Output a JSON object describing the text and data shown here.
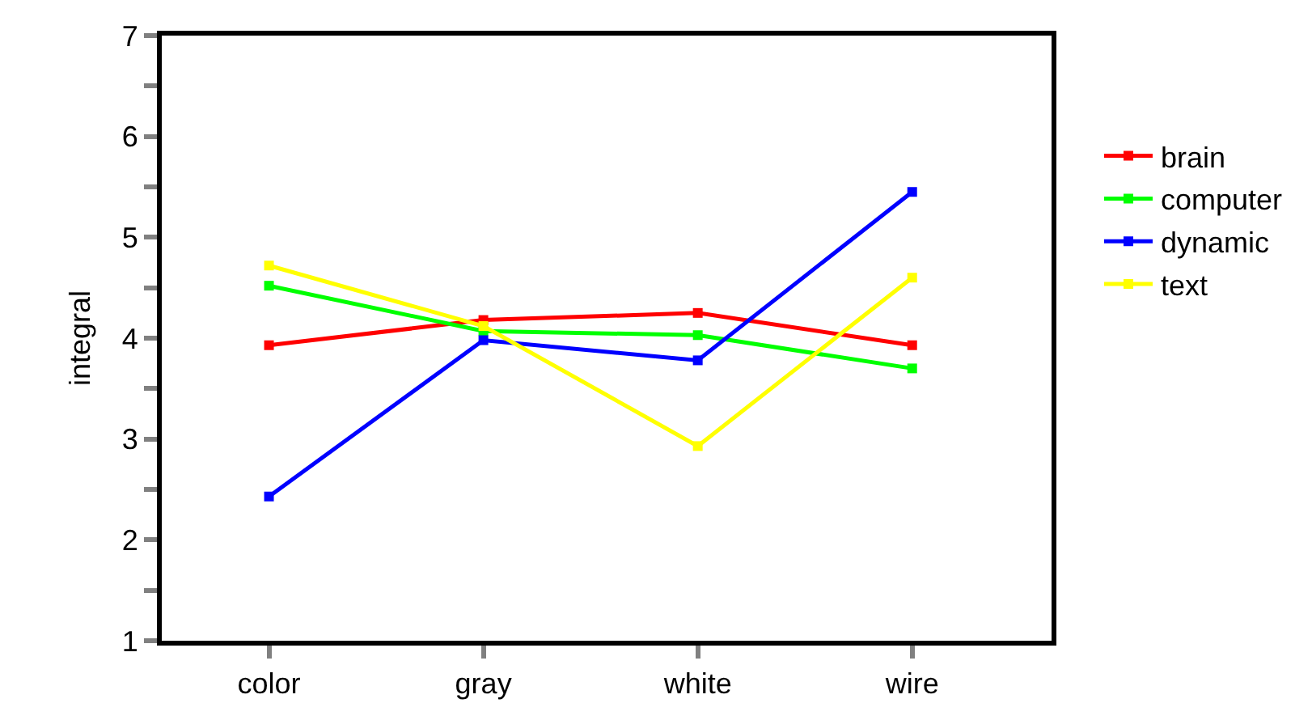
{
  "chart_data": {
    "type": "line",
    "ylabel": "integral",
    "categories": [
      "color",
      "gray",
      "white",
      "wire"
    ],
    "series": [
      {
        "name": "brain",
        "color": "#ff0000",
        "values": [
          3.93,
          4.18,
          4.25,
          3.93
        ]
      },
      {
        "name": "computer",
        "color": "#00ff00",
        "values": [
          4.52,
          4.07,
          4.03,
          3.7
        ]
      },
      {
        "name": "dynamic",
        "color": "#0000ff",
        "values": [
          2.43,
          3.98,
          3.78,
          5.45
        ]
      },
      {
        "name": "text",
        "color": "#ffff00",
        "values": [
          4.72,
          4.12,
          2.93,
          4.6
        ]
      }
    ],
    "ylim": [
      1,
      7
    ],
    "yticks": [
      1,
      {
        "value": 1.5,
        "label": null
      },
      2,
      {
        "value": 2.5,
        "label": null
      },
      3,
      {
        "value": 3.5,
        "label": null
      },
      4,
      {
        "value": 4.5,
        "label": null
      },
      5,
      {
        "value": 5.5,
        "label": null
      },
      6,
      {
        "value": 6.5,
        "label": null
      },
      7
    ],
    "marker": "square",
    "line_style": "solid",
    "grid": false,
    "legend": "right"
  }
}
